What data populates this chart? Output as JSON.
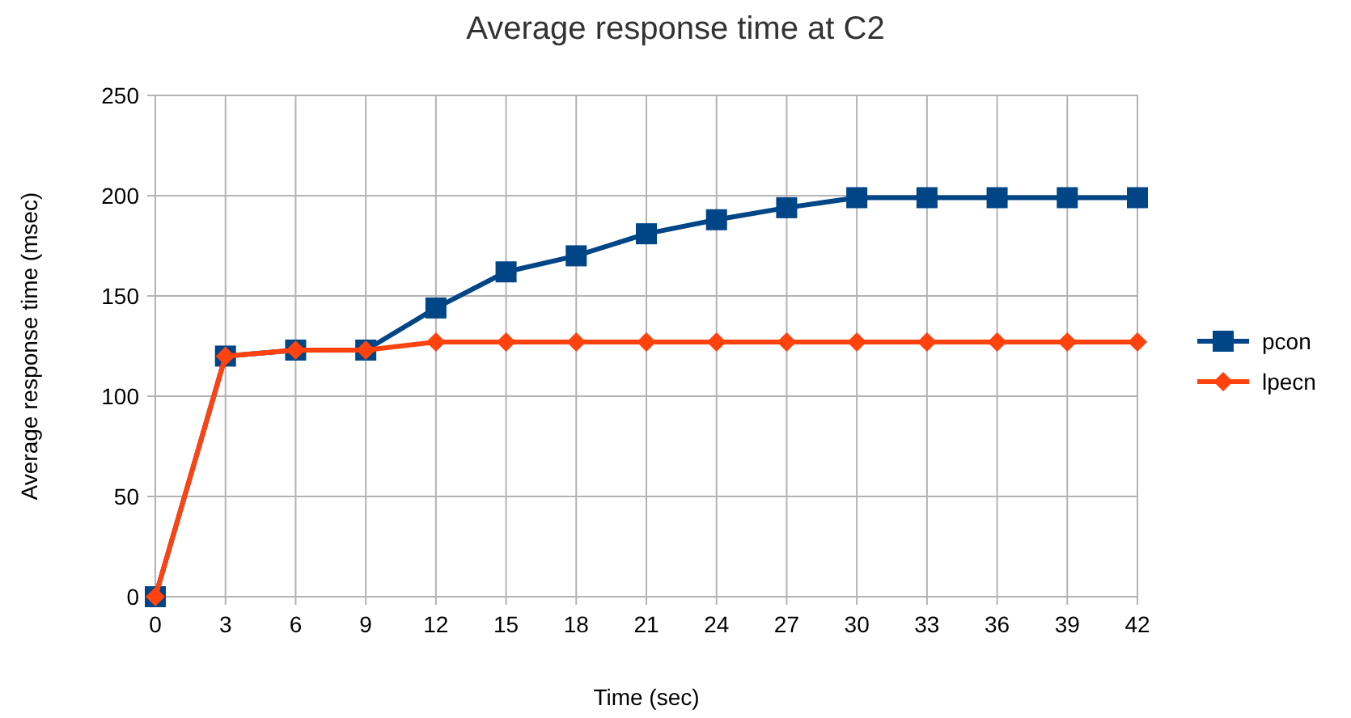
{
  "chart_data": {
    "type": "line",
    "title": "Average response time at C2",
    "xlabel": "Time (sec)",
    "ylabel": "Average response time (msec)",
    "x": [
      0,
      3,
      6,
      9,
      12,
      15,
      18,
      21,
      24,
      27,
      30,
      33,
      36,
      39,
      42
    ],
    "xlim": [
      0,
      42
    ],
    "xticks": [
      0,
      3,
      6,
      9,
      12,
      15,
      18,
      21,
      24,
      27,
      30,
      33,
      36,
      39,
      42
    ],
    "ylim": [
      0,
      250
    ],
    "yticks": [
      0,
      50,
      100,
      150,
      200,
      250
    ],
    "grid": true,
    "legend": "right",
    "line_style": "solid",
    "series": [
      {
        "name": "pcon",
        "color": "#004586",
        "marker": "square",
        "values": [
          0,
          120,
          123,
          123,
          144,
          162,
          170,
          181,
          188,
          194,
          199,
          199,
          199,
          199,
          199
        ]
      },
      {
        "name": "lpecn",
        "color": "#ff420e",
        "marker": "diamond",
        "values": [
          0,
          120,
          123,
          123,
          127,
          127,
          127,
          127,
          127,
          127,
          127,
          127,
          127,
          127,
          127
        ]
      }
    ]
  }
}
